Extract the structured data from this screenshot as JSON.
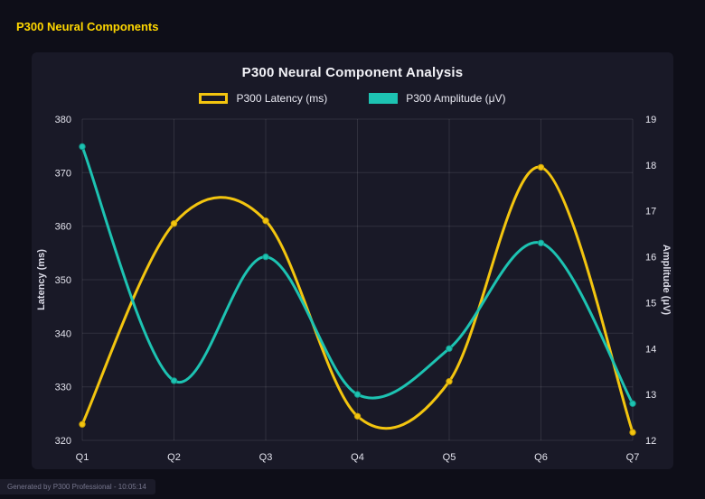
{
  "page": {
    "header": "P300 Neural Components",
    "footer": "Generated by P300 Professional - 10:05:14"
  },
  "chart_data": {
    "type": "line",
    "title": "P300 Neural Component Analysis",
    "categories": [
      "Q1",
      "Q2",
      "Q3",
      "Q4",
      "Q5",
      "Q6",
      "Q7"
    ],
    "series": [
      {
        "name": "P300 Latency (ms)",
        "axis": "left",
        "color": "#f3c50f",
        "marker_stroke": "#c79d06",
        "box": "outline",
        "values": [
          323,
          360.5,
          361,
          324.5,
          331,
          371,
          321.5
        ]
      },
      {
        "name": "P300 Amplitude (μV)",
        "axis": "right",
        "color": "#1dc3b2",
        "marker_stroke": "#12998b",
        "box": "solid",
        "values": [
          18.4,
          13.3,
          16.0,
          13.0,
          14.0,
          16.3,
          12.8
        ]
      }
    ],
    "left_axis": {
      "label": "Latency (ms)",
      "min": 320,
      "max": 380,
      "ticks": [
        320,
        330,
        340,
        350,
        360,
        370,
        380
      ]
    },
    "right_axis": {
      "label": "Amplitude (μV)",
      "min": 12,
      "max": 19,
      "ticks": [
        12,
        13,
        14,
        15,
        16,
        17,
        18,
        19
      ]
    },
    "grid": true,
    "legend_position": "top",
    "line_smoothing": "bezier"
  },
  "colors": {
    "page_bg": "#0e0e18",
    "panel_bg": "#191927",
    "header_yellow": "#ffd700",
    "grid": "rgba(255,255,255,0.10)",
    "axis_text": "#e4e4ee"
  }
}
